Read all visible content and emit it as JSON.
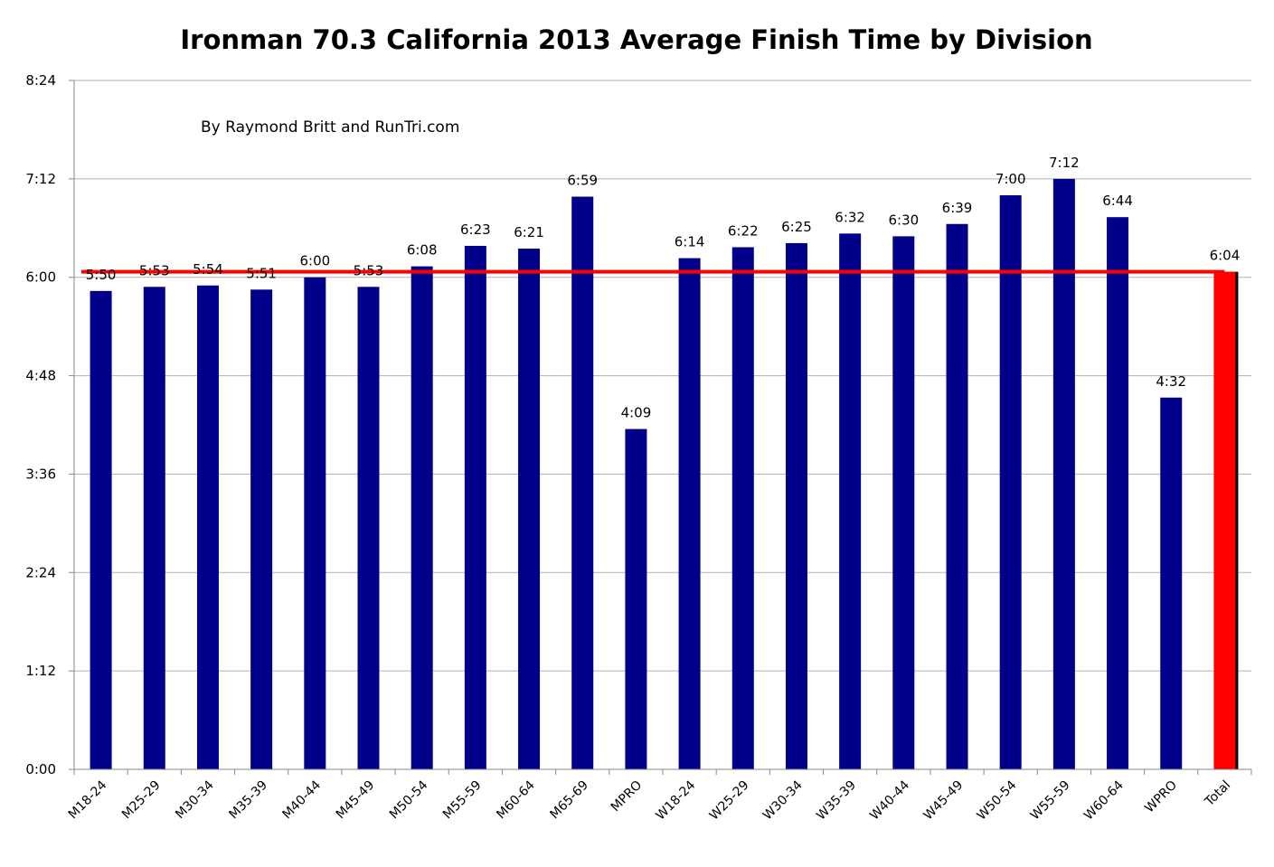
{
  "chart_data": {
    "type": "bar",
    "title": "Ironman 70.3 California 2013 Average Finish Time by Division",
    "subtitle": "By Raymond Britt and RunTri.com",
    "xlabel": "",
    "ylabel": "",
    "ylim_minutes": [
      0,
      504
    ],
    "yticks": [
      "0:00",
      "1:12",
      "2:24",
      "3:36",
      "4:48",
      "6:00",
      "7:12",
      "8:24"
    ],
    "categories": [
      "M18-24",
      "M25-29",
      "M30-34",
      "M35-39",
      "M40-44",
      "M45-49",
      "M50-54",
      "M55-59",
      "M60-64",
      "M65-69",
      "MPRO",
      "W18-24",
      "W25-29",
      "W30-34",
      "W35-39",
      "W40-44",
      "W45-49",
      "W50-54",
      "W55-59",
      "W60-64",
      "WPRO",
      "Total"
    ],
    "labels": [
      "5:50",
      "5:53",
      "5:54",
      "5:51",
      "6:00",
      "5:53",
      "6:08",
      "6:23",
      "6:21",
      "6:59",
      "4:09",
      "6:14",
      "6:22",
      "6:25",
      "6:32",
      "6:30",
      "6:39",
      "7:00",
      "7:12",
      "6:44",
      "4:32",
      "6:04"
    ],
    "values_minutes": [
      350,
      353,
      354,
      351,
      360,
      353,
      368,
      383,
      381,
      419,
      249,
      374,
      382,
      385,
      392,
      390,
      399,
      420,
      432,
      404,
      272,
      364
    ],
    "reference_line": {
      "value_minutes": 364
    },
    "colors": {
      "bar": "#00008b",
      "total_bar": "#ff0000",
      "reference_line": "#ff0000",
      "grid": "#b0b0b0",
      "axis": "#888888"
    },
    "grid": true,
    "legend": "none"
  }
}
